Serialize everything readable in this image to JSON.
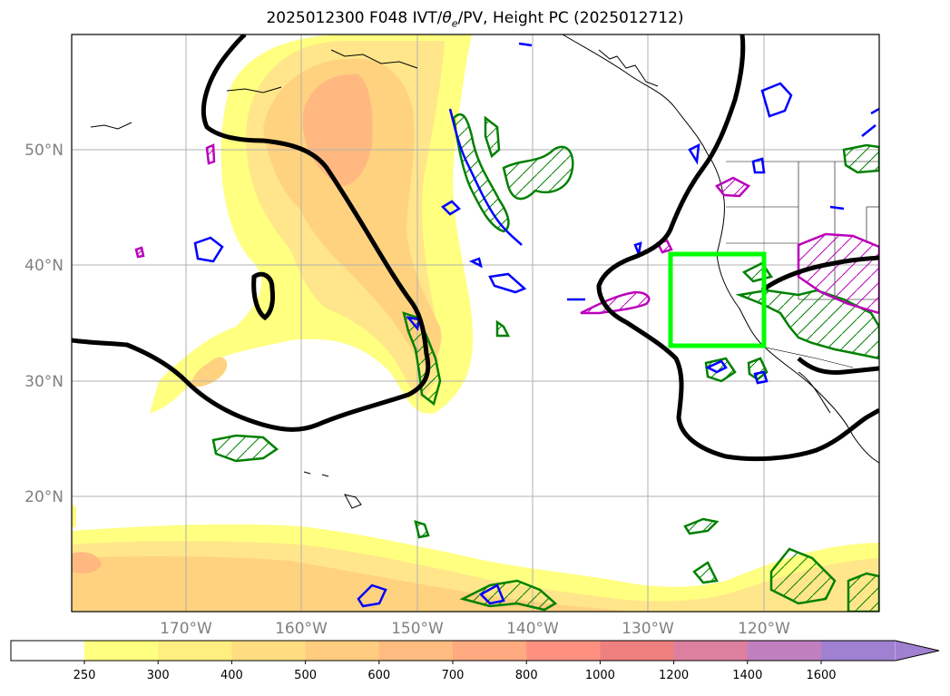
{
  "title": {
    "prefix": "2025012300 F048 IVT/",
    "theta": "θ",
    "theta_sub": "e",
    "suffix": "/PV, Height PC (2025012712)"
  },
  "map": {
    "lat_labels": [
      "50°N",
      "40°N",
      "30°N",
      "20°N"
    ],
    "lon_labels": [
      "170°W",
      "160°W",
      "150°W",
      "140°W",
      "130°W",
      "120°W"
    ],
    "lon_range": [
      -180,
      -110
    ],
    "lat_range": [
      10,
      60
    ],
    "highlight_box": {
      "lon": [
        -128,
        -121
      ],
      "lat": [
        33,
        41
      ],
      "color": "#00ff00"
    }
  },
  "colorbar": {
    "ticks": [
      "250",
      "300",
      "400",
      "500",
      "600",
      "700",
      "800",
      "1000",
      "1200",
      "1400",
      "1600"
    ],
    "colors": [
      "#ffff80",
      "#ffee80",
      "#ffdd80",
      "#ffcc80",
      "#ffbb80",
      "#ffaa80",
      "#ff9080",
      "#ee8080",
      "#dd80a0",
      "#c080c0",
      "#a080d0"
    ],
    "extend": "max"
  },
  "colors": {
    "height_contour": "#000000",
    "theta_contour": "#008000",
    "pv_contour": "#0000ff",
    "extra_contour": "#bb00bb"
  }
}
